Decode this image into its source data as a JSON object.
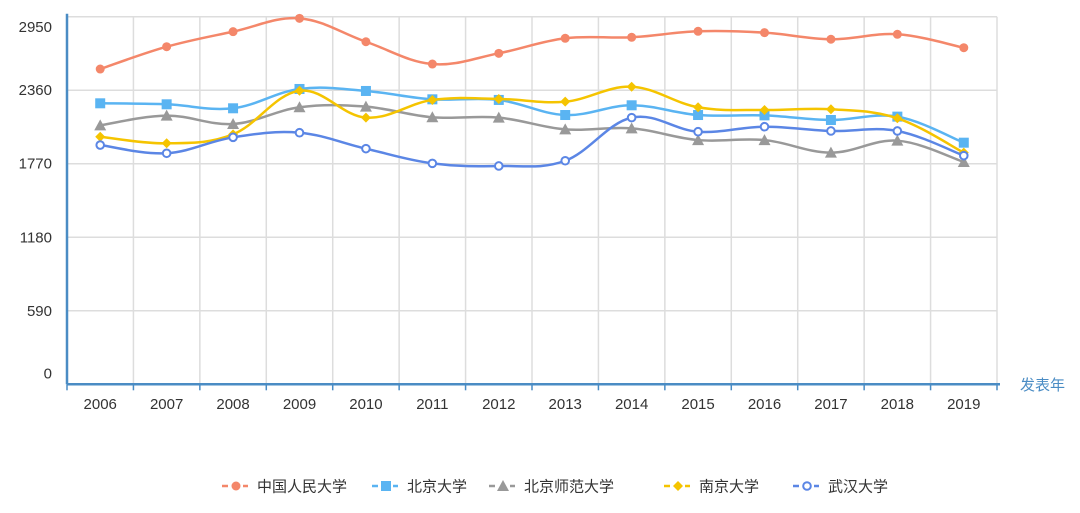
{
  "chart_data": {
    "type": "line",
    "smooth": true,
    "title": "",
    "xlabel": "发表年",
    "ylabel": "",
    "categories": [
      "2006",
      "2007",
      "2008",
      "2009",
      "2010",
      "2011",
      "2012",
      "2013",
      "2014",
      "2015",
      "2016",
      "2017",
      "2018",
      "2019"
    ],
    "ylim": [
      0,
      2950
    ],
    "yticks": [
      "0",
      "590",
      "1180",
      "1770",
      "2360",
      "2950"
    ],
    "grid": true,
    "legend_position": "bottom",
    "axis_color": "#4a8cc4",
    "series": [
      {
        "name": "中国人民大学",
        "color": "#f4876a",
        "marker": "circle",
        "values": [
          2530,
          2709,
          2830,
          2937,
          2749,
          2570,
          2656,
          2777,
          2785,
          2833,
          2822,
          2769,
          2809,
          2701
        ]
      },
      {
        "name": "北京大学",
        "color": "#5ab4f2",
        "marker": "square",
        "values": [
          2255,
          2247,
          2215,
          2370,
          2354,
          2287,
          2282,
          2161,
          2239,
          2161,
          2158,
          2121,
          2148,
          1939
        ]
      },
      {
        "name": "北京师范大学",
        "color": "#999999",
        "marker": "triangle",
        "values": [
          2078,
          2156,
          2089,
          2223,
          2228,
          2143,
          2140,
          2046,
          2054,
          1960,
          1960,
          1859,
          1955,
          1784
        ]
      },
      {
        "name": "南京大学",
        "color": "#f5c400",
        "marker": "diamond",
        "values": [
          1987,
          1934,
          2006,
          2356,
          2140,
          2282,
          2290,
          2268,
          2388,
          2223,
          2201,
          2207,
          2135,
          1859
        ]
      },
      {
        "name": "武汉大学",
        "color": "#5b86e5",
        "marker": "empty-circle",
        "values": [
          1920,
          1854,
          1982,
          2019,
          1891,
          1773,
          1752,
          1794,
          2140,
          2027,
          2067,
          2033,
          2033,
          1835
        ]
      }
    ]
  }
}
